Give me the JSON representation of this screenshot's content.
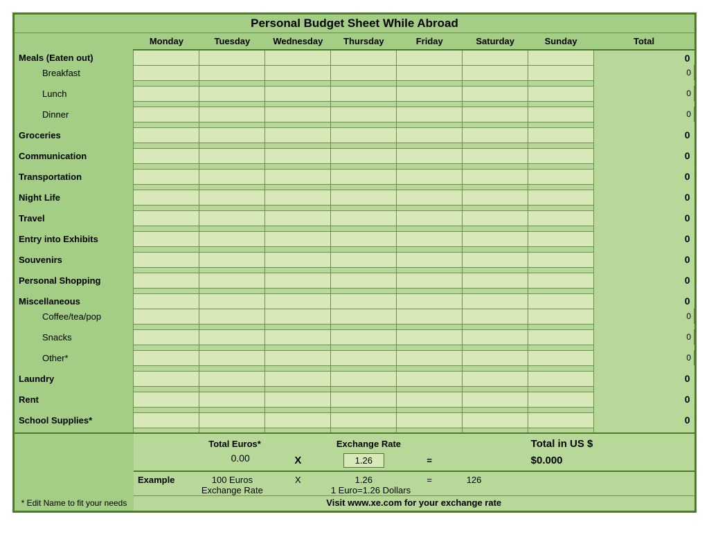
{
  "title": "Personal Budget Sheet While Abroad",
  "days": [
    "Monday",
    "Tuesday",
    "Wednesday",
    "Thursday",
    "Friday",
    "Saturday",
    "Sunday"
  ],
  "total_header": "Total",
  "categories": [
    {
      "name": "Meals (Eaten out)",
      "total": "0",
      "subs": [
        {
          "name": "Breakfast",
          "subtotal": "0"
        },
        {
          "name": "Lunch",
          "subtotal": "0"
        },
        {
          "name": "Dinner",
          "subtotal": "0"
        }
      ]
    },
    {
      "name": "Groceries",
      "total": "0"
    },
    {
      "name": "Communication",
      "total": "0"
    },
    {
      "name": "Transportation",
      "total": "0"
    },
    {
      "name": "Night Life",
      "total": "0"
    },
    {
      "name": "Travel",
      "total": "0"
    },
    {
      "name": "Entry into Exhibits",
      "total": "0"
    },
    {
      "name": "Souvenirs",
      "total": "0"
    },
    {
      "name": "Personal Shopping",
      "total": "0"
    },
    {
      "name": "Miscellaneous",
      "total": "0",
      "subs": [
        {
          "name": "Coffee/tea/pop",
          "subtotal": "0"
        },
        {
          "name": "Snacks",
          "subtotal": "0"
        },
        {
          "name": "Other*",
          "subtotal": "0"
        }
      ]
    },
    {
      "name": "Laundry",
      "total": "0"
    },
    {
      "name": "Rent",
      "total": "0"
    },
    {
      "name": "School Supplies*",
      "total": "0"
    }
  ],
  "footer": {
    "total_euros_label": "Total Euros*",
    "total_euros_value": "0.00",
    "x": "X",
    "exchange_rate_label": "Exchange Rate",
    "exchange_rate_value": "1.26",
    "equals": "=",
    "total_us_label": "Total in US $",
    "total_us_value": "$0.000",
    "example_label": "Example",
    "example_euros": "100 Euros",
    "example_x": "X",
    "example_rate": "1.26",
    "example_eq": "=",
    "example_result": "126",
    "example_rate_label": "Exchange Rate",
    "example_conv": "1 Euro=1.26 Dollars",
    "edit_note": "* Edit Name to fit your needs",
    "visit": "Visit www.xe.com for your exchange rate"
  },
  "colors": {
    "sidebar": "#a4cd86",
    "input": "#d8e8b8",
    "spacer": "#b8d89a",
    "border_dark": "#4a7a2a",
    "border_light": "#6b8f4a"
  }
}
